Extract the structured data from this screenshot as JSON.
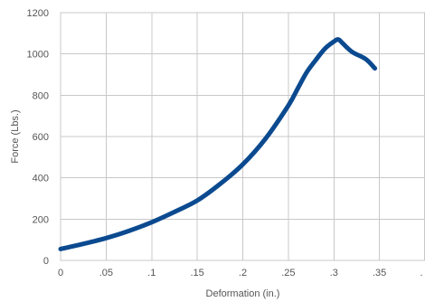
{
  "chart_data": {
    "type": "line",
    "title": "",
    "xlabel": "Deformation (in.)",
    "ylabel": "Force (Lbs.)",
    "xlim": [
      0,
      0.4
    ],
    "ylim": [
      0,
      1200
    ],
    "x_ticks": [
      {
        "value": 0,
        "label": "0"
      },
      {
        "value": 0.05,
        "label": ".05"
      },
      {
        "value": 0.1,
        "label": ".1"
      },
      {
        "value": 0.15,
        "label": ".15"
      },
      {
        "value": 0.2,
        "label": ".2"
      },
      {
        "value": 0.25,
        "label": ".25"
      },
      {
        "value": 0.3,
        "label": ".3"
      },
      {
        "value": 0.35,
        "label": ".35"
      },
      {
        "value": 0.4,
        "label": "."
      }
    ],
    "y_ticks": [
      {
        "value": 0,
        "label": "0"
      },
      {
        "value": 200,
        "label": "200"
      },
      {
        "value": 400,
        "label": "400"
      },
      {
        "value": 600,
        "label": "600"
      },
      {
        "value": 800,
        "label": "800"
      },
      {
        "value": 1000,
        "label": "1000"
      },
      {
        "value": 1200,
        "label": "1200"
      }
    ],
    "grid": true,
    "series": [
      {
        "color": "#0b4a8f",
        "x": [
          0,
          0.025,
          0.05,
          0.075,
          0.1,
          0.125,
          0.15,
          0.175,
          0.2,
          0.225,
          0.25,
          0.26,
          0.27,
          0.28,
          0.29,
          0.3,
          0.305,
          0.31,
          0.32,
          0.335,
          0.345
        ],
        "y": [
          55,
          80,
          108,
          143,
          185,
          235,
          290,
          370,
          465,
          590,
          750,
          830,
          910,
          970,
          1025,
          1060,
          1070,
          1050,
          1010,
          975,
          930
        ]
      }
    ]
  }
}
